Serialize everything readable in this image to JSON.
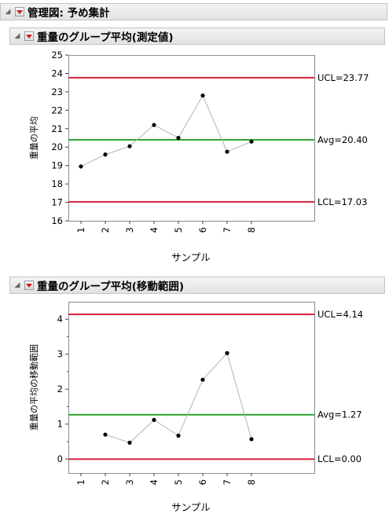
{
  "report": {
    "title": "管理図: 予め集計"
  },
  "panels": [
    {
      "title": "重量のグループ平均(測定値)"
    },
    {
      "title": "重量のグループ平均(移動範囲)"
    }
  ],
  "chart_data": [
    {
      "type": "line",
      "ylabel": "重量の平均",
      "xlabel": "サンプル",
      "categories": [
        "1",
        "2",
        "3",
        "4",
        "5",
        "6",
        "7",
        "8"
      ],
      "values": [
        18.95,
        19.6,
        20.05,
        21.2,
        20.5,
        22.8,
        19.75,
        20.3
      ],
      "ylim": [
        16,
        25
      ],
      "yticks": [
        16,
        17,
        18,
        19,
        20,
        21,
        22,
        23,
        24,
        25
      ],
      "lines": {
        "ucl": {
          "value": 23.77,
          "label": "UCL=23.77",
          "color": "#d2253c"
        },
        "avg": {
          "value": 20.4,
          "label": "Avg=20.40",
          "color": "#2ca02c"
        },
        "lcl": {
          "value": 17.03,
          "label": "LCL=17.03",
          "color": "#d2253c"
        }
      },
      "series_color": "#b4b4b4",
      "grid": false
    },
    {
      "type": "line",
      "ylabel": "重量の平均の移動範囲",
      "xlabel": "サンプル",
      "categories": [
        "1",
        "2",
        "3",
        "4",
        "5",
        "6",
        "7",
        "8"
      ],
      "values": [
        null,
        0.7,
        0.47,
        1.12,
        0.67,
        2.27,
        3.03,
        0.57
      ],
      "ylim": [
        -0.4,
        4.5
      ],
      "yticks": [
        0,
        1,
        2,
        3,
        4
      ],
      "lines": {
        "ucl": {
          "value": 4.14,
          "label": "UCL=4.14",
          "color": "#d2253c"
        },
        "avg": {
          "value": 1.27,
          "label": "Avg=1.27",
          "color": "#2ca02c"
        },
        "lcl": {
          "value": 0.0,
          "label": "LCL=0.00",
          "color": "#d2253c"
        }
      },
      "series_color": "#b4b4b4",
      "grid": false
    }
  ]
}
